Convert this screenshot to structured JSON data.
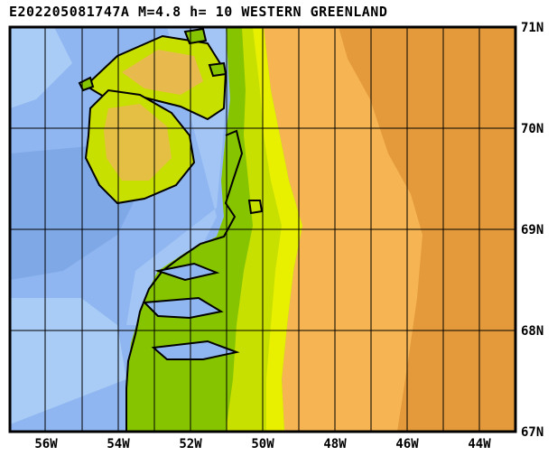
{
  "title": "E202205081747A M=4.8 h= 10 WESTERN GREENLAND",
  "lat_labels": [
    "71N",
    "70N",
    "69N",
    "68N",
    "67N"
  ],
  "lon_labels": [
    "56W",
    "54W",
    "52W",
    "50W",
    "48W",
    "46W",
    "44W"
  ],
  "colors": {
    "deep_ocean": "#7fa8e6",
    "ocean": "#8fb6f0",
    "shelf": "#a9ccf6",
    "lowland": "#86c400",
    "midland": "#c8e000",
    "highland": "#e8f000",
    "peak": "#f0b060",
    "ice": "#f6b552",
    "ice_deep": "#e49a3a",
    "coast": "#000000"
  }
}
